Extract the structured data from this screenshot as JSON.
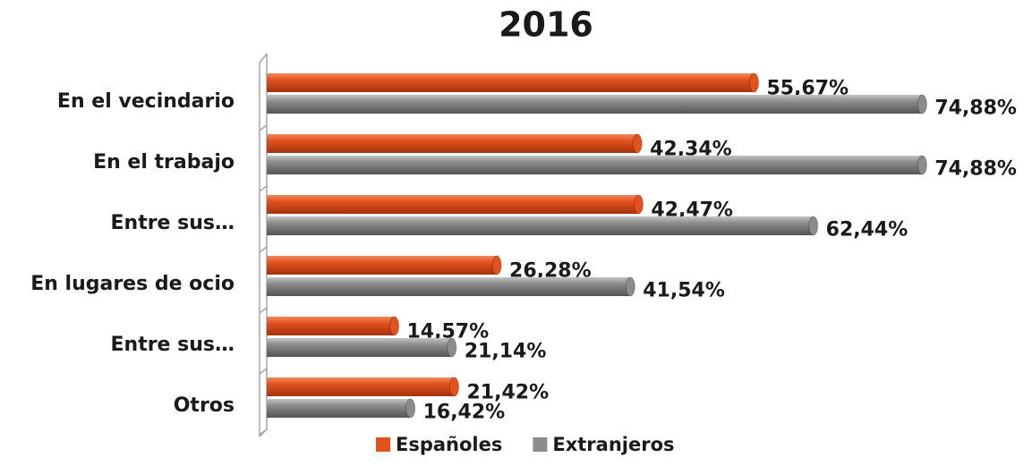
{
  "chart_data": {
    "type": "bar",
    "orientation": "horizontal",
    "title": "2016",
    "categories": [
      "En el vecindario",
      "En el trabajo",
      "Entre sus…",
      "En lugares de ocio",
      "Entre sus…",
      "Otros"
    ],
    "series": [
      {
        "name": "Españoles",
        "color": "#e2521f",
        "values": [
          55.67,
          42.34,
          42.47,
          26.28,
          14.57,
          21.42
        ],
        "value_labels": [
          "55,67%",
          "42,34%",
          "42,47%",
          "26,28%",
          "14,57%",
          "21,42%"
        ]
      },
      {
        "name": "Extranjeros",
        "color": "#8c8c8c",
        "values": [
          74.88,
          74.88,
          62.44,
          41.54,
          21.14,
          16.42
        ],
        "value_labels": [
          "74,88%",
          "74,88%",
          "62,44%",
          "41,54%",
          "21,14%",
          "16,42%"
        ]
      }
    ],
    "legend": "bottom"
  }
}
